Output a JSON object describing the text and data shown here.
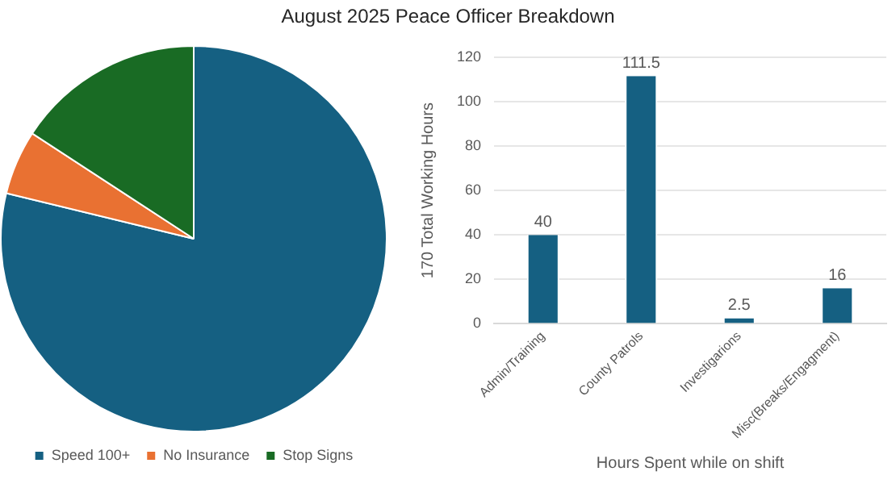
{
  "chart_data": [
    {
      "type": "pie",
      "title": "August 2025 Peace Officer Breakdown",
      "categories": [
        "Speed 100+",
        "No Insurance",
        "Stop Signs"
      ],
      "values": [
        78.8,
        5.4,
        15.8
      ],
      "colors": [
        "#156082",
        "#e97132",
        "#196b24"
      ],
      "legend": "bottom"
    },
    {
      "type": "bar",
      "categories": [
        "Admin/Training",
        "County Patrols",
        "Investigarions",
        "Misc(Breaks/Engagment)"
      ],
      "values": [
        40,
        111.5,
        2.5,
        16
      ],
      "color": "#156082",
      "xlabel": "Hours Spent while on shift",
      "ylabel": "170 Total Working Hours",
      "ylim": [
        0,
        120
      ],
      "yticks": [
        0,
        20,
        40,
        60,
        80,
        100,
        120
      ],
      "grid": "y",
      "data_labels": true
    }
  ]
}
